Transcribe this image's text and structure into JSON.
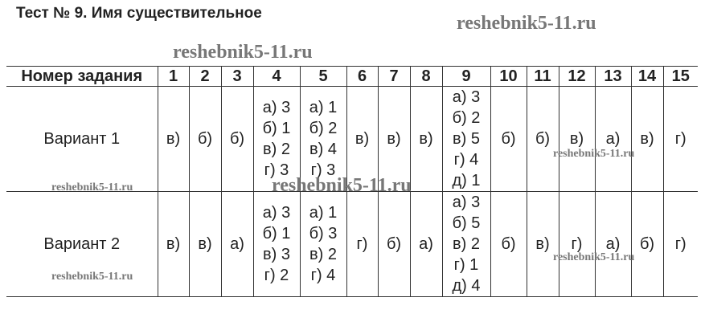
{
  "title": "Тест № 9. Имя существительное",
  "watermark": "reshebnik5-11.ru",
  "table": {
    "header_label": "Номер задания",
    "columns": [
      "1",
      "2",
      "3",
      "4",
      "5",
      "6",
      "7",
      "8",
      "9",
      "10",
      "11",
      "12",
      "13",
      "14",
      "15"
    ],
    "rows": [
      {
        "label": "Вариант 1",
        "cells": [
          [
            "в)"
          ],
          [
            "б)"
          ],
          [
            "б)"
          ],
          [
            "а) 3",
            "б) 1",
            "в) 2",
            "г) 3"
          ],
          [
            "а) 1",
            "б) 2",
            "в) 4",
            "г) 3"
          ],
          [
            "в)"
          ],
          [
            "в)"
          ],
          [
            "в)"
          ],
          [
            "а) 3",
            "б) 2",
            "в) 5",
            "г) 4",
            "д) 1"
          ],
          [
            "б)"
          ],
          [
            "б)"
          ],
          [
            "в)"
          ],
          [
            "а)"
          ],
          [
            "в)"
          ],
          [
            "г)"
          ]
        ]
      },
      {
        "label": "Вариант 2",
        "cells": [
          [
            "в)"
          ],
          [
            "в)"
          ],
          [
            "а)"
          ],
          [
            "а) 3",
            "б) 1",
            "в) 3",
            "г) 2"
          ],
          [
            "а) 1",
            "б) 3",
            "в) 2",
            "г) 4"
          ],
          [
            "г)"
          ],
          [
            "б)"
          ],
          [
            "а)"
          ],
          [
            "а) 3",
            "б) 5",
            "в) 2",
            "г) 1",
            "д) 4"
          ],
          [
            "б)"
          ],
          [
            "в)"
          ],
          [
            "г)"
          ],
          [
            "а)"
          ],
          [
            "б)"
          ],
          [
            "г)"
          ]
        ]
      }
    ]
  }
}
